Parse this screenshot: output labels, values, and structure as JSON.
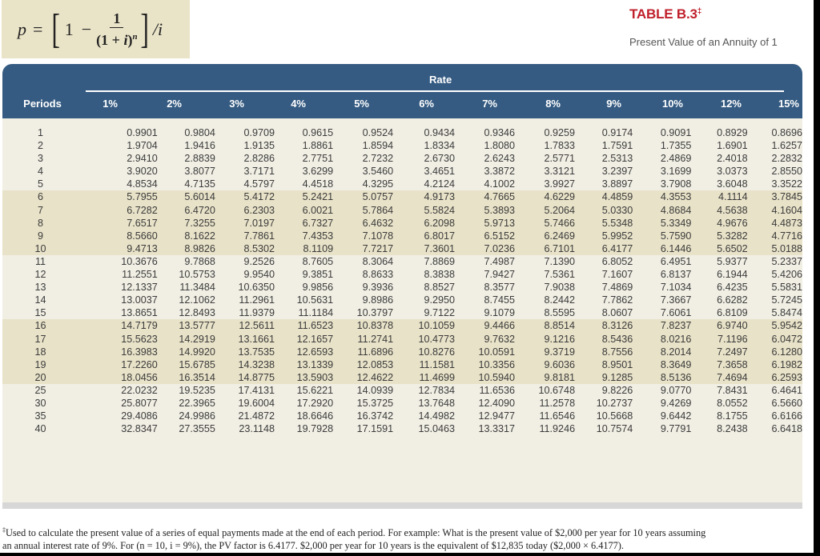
{
  "formula": {
    "lhs": "p",
    "equals": "=",
    "one": "1",
    "minus": "−",
    "numerator": "1",
    "denominator_base": "(1 + ",
    "denominator_i": "i",
    "denominator_close": ")",
    "denominator_exp": "n",
    "divide": "/i"
  },
  "header": {
    "title": "TABLE B.3",
    "title_mark": "‡",
    "subtitle": "Present Value of an Annuity of 1"
  },
  "table": {
    "rate_label": "Rate",
    "periods_label": "Periods",
    "rates": [
      "1%",
      "2%",
      "3%",
      "4%",
      "5%",
      "6%",
      "7%",
      "8%",
      "9%",
      "10%",
      "12%",
      "15%"
    ],
    "rows": [
      {
        "period": "1",
        "values": [
          "0.9901",
          "0.9804",
          "0.9709",
          "0.9615",
          "0.9524",
          "0.9434",
          "0.9346",
          "0.9259",
          "0.9174",
          "0.9091",
          "0.8929",
          "0.8696"
        ]
      },
      {
        "period": "2",
        "values": [
          "1.9704",
          "1.9416",
          "1.9135",
          "1.8861",
          "1.8594",
          "1.8334",
          "1.8080",
          "1.7833",
          "1.7591",
          "1.7355",
          "1.6901",
          "1.6257"
        ]
      },
      {
        "period": "3",
        "values": [
          "2.9410",
          "2.8839",
          "2.8286",
          "2.7751",
          "2.7232",
          "2.6730",
          "2.6243",
          "2.5771",
          "2.5313",
          "2.4869",
          "2.4018",
          "2.2832"
        ]
      },
      {
        "period": "4",
        "values": [
          "3.9020",
          "3.8077",
          "3.7171",
          "3.6299",
          "3.5460",
          "3.4651",
          "3.3872",
          "3.3121",
          "3.2397",
          "3.1699",
          "3.0373",
          "2.8550"
        ]
      },
      {
        "period": "5",
        "values": [
          "4.8534",
          "4.7135",
          "4.5797",
          "4.4518",
          "4.3295",
          "4.2124",
          "4.1002",
          "3.9927",
          "3.8897",
          "3.7908",
          "3.6048",
          "3.3522"
        ]
      },
      {
        "period": "6",
        "values": [
          "5.7955",
          "5.6014",
          "5.4172",
          "5.2421",
          "5.0757",
          "4.9173",
          "4.7665",
          "4.6229",
          "4.4859",
          "4.3553",
          "4.1114",
          "3.7845"
        ]
      },
      {
        "period": "7",
        "values": [
          "6.7282",
          "6.4720",
          "6.2303",
          "6.0021",
          "5.7864",
          "5.5824",
          "5.3893",
          "5.2064",
          "5.0330",
          "4.8684",
          "4.5638",
          "4.1604"
        ]
      },
      {
        "period": "8",
        "values": [
          "7.6517",
          "7.3255",
          "7.0197",
          "6.7327",
          "6.4632",
          "6.2098",
          "5.9713",
          "5.7466",
          "5.5348",
          "5.3349",
          "4.9676",
          "4.4873"
        ]
      },
      {
        "period": "9",
        "values": [
          "8.5660",
          "8.1622",
          "7.7861",
          "7.4353",
          "7.1078",
          "6.8017",
          "6.5152",
          "6.2469",
          "5.9952",
          "5.7590",
          "5.3282",
          "4.7716"
        ]
      },
      {
        "period": "10",
        "values": [
          "9.4713",
          "8.9826",
          "8.5302",
          "8.1109",
          "7.7217",
          "7.3601",
          "7.0236",
          "6.7101",
          "6.4177",
          "6.1446",
          "5.6502",
          "5.0188"
        ]
      },
      {
        "period": "11",
        "values": [
          "10.3676",
          "9.7868",
          "9.2526",
          "8.7605",
          "8.3064",
          "7.8869",
          "7.4987",
          "7.1390",
          "6.8052",
          "6.4951",
          "5.9377",
          "5.2337"
        ]
      },
      {
        "period": "12",
        "values": [
          "11.2551",
          "10.5753",
          "9.9540",
          "9.3851",
          "8.8633",
          "8.3838",
          "7.9427",
          "7.5361",
          "7.1607",
          "6.8137",
          "6.1944",
          "5.4206"
        ]
      },
      {
        "period": "13",
        "values": [
          "12.1337",
          "11.3484",
          "10.6350",
          "9.9856",
          "9.3936",
          "8.8527",
          "8.3577",
          "7.9038",
          "7.4869",
          "7.1034",
          "6.4235",
          "5.5831"
        ]
      },
      {
        "period": "14",
        "values": [
          "13.0037",
          "12.1062",
          "11.2961",
          "10.5631",
          "9.8986",
          "9.2950",
          "8.7455",
          "8.2442",
          "7.7862",
          "7.3667",
          "6.6282",
          "5.7245"
        ]
      },
      {
        "period": "15",
        "values": [
          "13.8651",
          "12.8493",
          "11.9379",
          "11.1184",
          "10.3797",
          "9.7122",
          "9.1079",
          "8.5595",
          "8.0607",
          "7.6061",
          "6.8109",
          "5.8474"
        ]
      },
      {
        "period": "16",
        "values": [
          "14.7179",
          "13.5777",
          "12.5611",
          "11.6523",
          "10.8378",
          "10.1059",
          "9.4466",
          "8.8514",
          "8.3126",
          "7.8237",
          "6.9740",
          "5.9542"
        ]
      },
      {
        "period": "17",
        "values": [
          "15.5623",
          "14.2919",
          "13.1661",
          "12.1657",
          "11.2741",
          "10.4773",
          "9.7632",
          "9.1216",
          "8.5436",
          "8.0216",
          "7.1196",
          "6.0472"
        ]
      },
      {
        "period": "18",
        "values": [
          "16.3983",
          "14.9920",
          "13.7535",
          "12.6593",
          "11.6896",
          "10.8276",
          "10.0591",
          "9.3719",
          "8.7556",
          "8.2014",
          "7.2497",
          "6.1280"
        ]
      },
      {
        "period": "19",
        "values": [
          "17.2260",
          "15.6785",
          "14.3238",
          "13.1339",
          "12.0853",
          "11.1581",
          "10.3356",
          "9.6036",
          "8.9501",
          "8.3649",
          "7.3658",
          "6.1982"
        ]
      },
      {
        "period": "20",
        "values": [
          "18.0456",
          "16.3514",
          "14.8775",
          "13.5903",
          "12.4622",
          "11.4699",
          "10.5940",
          "9.8181",
          "9.1285",
          "8.5136",
          "7.4694",
          "6.2593"
        ]
      },
      {
        "period": "25",
        "values": [
          "22.0232",
          "19.5235",
          "17.4131",
          "15.6221",
          "14.0939",
          "12.7834",
          "11.6536",
          "10.6748",
          "9.8226",
          "9.0770",
          "7.8431",
          "6.4641"
        ]
      },
      {
        "period": "30",
        "values": [
          "25.8077",
          "22.3965",
          "19.6004",
          "17.2920",
          "15.3725",
          "13.7648",
          "12.4090",
          "11.2578",
          "10.2737",
          "9.4269",
          "8.0552",
          "6.5660"
        ]
      },
      {
        "period": "35",
        "values": [
          "29.4086",
          "24.9986",
          "21.4872",
          "18.6646",
          "16.3742",
          "14.4982",
          "12.9477",
          "11.6546",
          "10.5668",
          "9.6442",
          "8.1755",
          "6.6166"
        ]
      },
      {
        "period": "40",
        "values": [
          "32.8347",
          "27.3555",
          "23.1148",
          "19.7928",
          "17.1591",
          "15.0463",
          "13.3317",
          "11.9246",
          "10.7574",
          "9.7791",
          "8.2438",
          "6.6418"
        ]
      }
    ]
  },
  "footnote": {
    "mark": "‡",
    "line1": "Used to calculate the present value of a series of equal payments made at the end of each period. For example: What is the present value of $2,000 per year for 10 years assuming",
    "line2": "an annual interest rate of 9%. For (n = 10, i = 9%), the PV factor is 6.4177. $2,000 per year for 10 years is the equivalent of $12,835 today ($2,000 × 6.4177)."
  },
  "colors": {
    "header_bg": "#355b82",
    "title_red": "#c0202c",
    "band_light": "#f1efe4",
    "band_dark": "#e8e2c8",
    "formula_bg": "#e9e3c7"
  }
}
